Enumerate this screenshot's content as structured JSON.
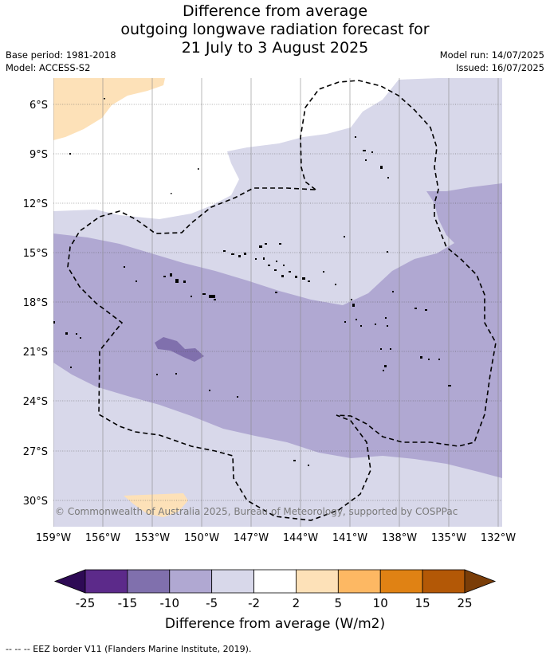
{
  "title": {
    "line1": "Difference from average",
    "line2": "outgoing longwave radiation forecast for",
    "line3": "21 July to 3 August 2025"
  },
  "meta": {
    "base_period": "Base period: 1981-2018",
    "model": "Model: ACCESS-S2",
    "model_run": "Model run: 14/07/2025",
    "issued": "Issued: 16/07/2025"
  },
  "map": {
    "lat_labels": [
      "6°S",
      "9°S",
      "12°S",
      "15°S",
      "18°S",
      "21°S",
      "24°S",
      "27°S",
      "30°S"
    ],
    "lon_labels": [
      "159°W",
      "156°W",
      "153°W",
      "150°W",
      "147°W",
      "144°W",
      "141°W",
      "138°W",
      "135°W",
      "132°W"
    ],
    "copyright": "© Commonwealth of Australia 2025, Bureau of Meteorology, supported by COSPPac",
    "eez_border": "dashed"
  },
  "colorbar": {
    "title": "Difference from average (W/m2)",
    "labels": [
      "-25",
      "-15",
      "-10",
      "-5",
      "-2",
      "2",
      "5",
      "10",
      "15",
      "25"
    ],
    "colors": [
      "#2e0a55",
      "#5c2a8a",
      "#8070ad",
      "#b0a8d2",
      "#d8d8ea",
      "#ffffff",
      "#fde1b8",
      "#fdb863",
      "#e08214",
      "#b35806",
      "#7a3d08"
    ]
  },
  "footnote": "--  --  -- EEZ border V11 (Flanders Marine Institute, 2019)."
}
